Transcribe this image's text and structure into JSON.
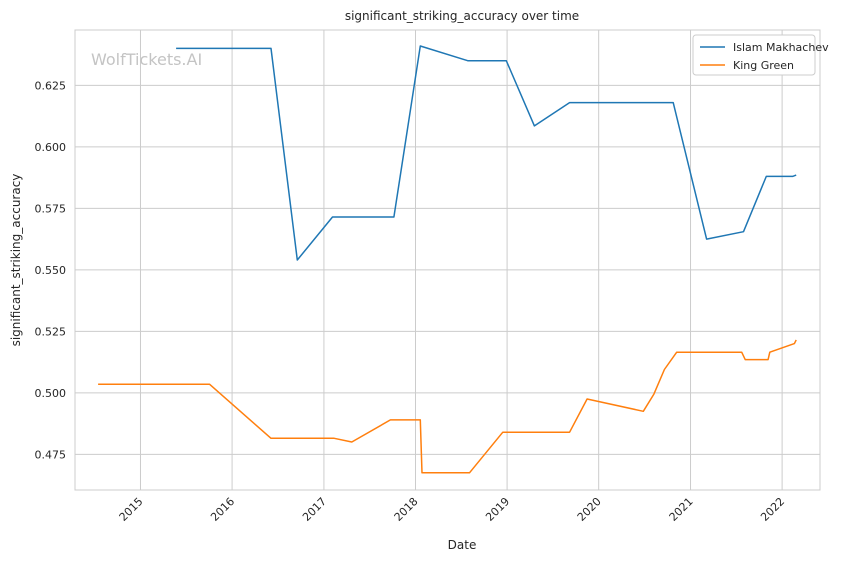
{
  "chart_data": {
    "type": "line",
    "title": "significant_striking_accuracy over time",
    "xlabel": "Date",
    "ylabel": "significant_striking_accuracy",
    "watermark": "WolfTickets.AI",
    "grid": true,
    "legend_position": "top-right",
    "xlim": [
      "2014-04-15",
      "2022-06-01"
    ],
    "ylim": [
      0.4605,
      0.6475
    ],
    "x_ticks": [
      "2015",
      "2016",
      "2017",
      "2018",
      "2019",
      "2020",
      "2021",
      "2022"
    ],
    "y_ticks": [
      "0.475",
      "0.500",
      "0.525",
      "0.550",
      "0.575",
      "0.600",
      "0.625"
    ],
    "series": [
      {
        "name": "Islam Makhachev",
        "color": "#1f77b4",
        "points": [
          [
            "2015-05-23",
            0.64
          ],
          [
            "2016-06-04",
            0.64
          ],
          [
            "2016-09-17",
            0.554
          ],
          [
            "2017-02-04",
            0.5715
          ],
          [
            "2017-10-07",
            0.5715
          ],
          [
            "2018-01-20",
            0.641
          ],
          [
            "2018-07-28",
            0.635
          ],
          [
            "2018-12-29",
            0.635
          ],
          [
            "2019-04-20",
            0.6085
          ],
          [
            "2019-09-07",
            0.618
          ],
          [
            "2020-10-24",
            0.618
          ],
          [
            "2021-03-06",
            0.5625
          ],
          [
            "2021-07-31",
            0.5655
          ],
          [
            "2021-10-30",
            0.588
          ],
          [
            "2022-02-12",
            0.588
          ],
          [
            "2022-02-26",
            0.5885
          ]
        ]
      },
      {
        "name": "King Green",
        "color": "#ff7f0e",
        "points": [
          [
            "2014-07-16",
            0.5035
          ],
          [
            "2015-10-03",
            0.5035
          ],
          [
            "2016-06-04",
            0.4815
          ],
          [
            "2017-02-11",
            0.4815
          ],
          [
            "2017-04-22",
            0.48
          ],
          [
            "2017-09-23",
            0.489
          ],
          [
            "2018-01-20",
            0.489
          ],
          [
            "2018-01-27",
            0.4675
          ],
          [
            "2018-08-04",
            0.4675
          ],
          [
            "2018-12-15",
            0.484
          ],
          [
            "2019-09-07",
            0.484
          ],
          [
            "2019-11-16",
            0.4975
          ],
          [
            "2020-06-27",
            0.4925
          ],
          [
            "2020-08-08",
            0.4995
          ],
          [
            "2020-09-19",
            0.5095
          ],
          [
            "2020-11-07",
            0.5165
          ],
          [
            "2021-07-24",
            0.5165
          ],
          [
            "2021-08-07",
            0.5135
          ],
          [
            "2021-11-06",
            0.5135
          ],
          [
            "2021-11-13",
            0.5165
          ],
          [
            "2022-02-19",
            0.52
          ],
          [
            "2022-02-26",
            0.5215
          ]
        ]
      }
    ]
  }
}
